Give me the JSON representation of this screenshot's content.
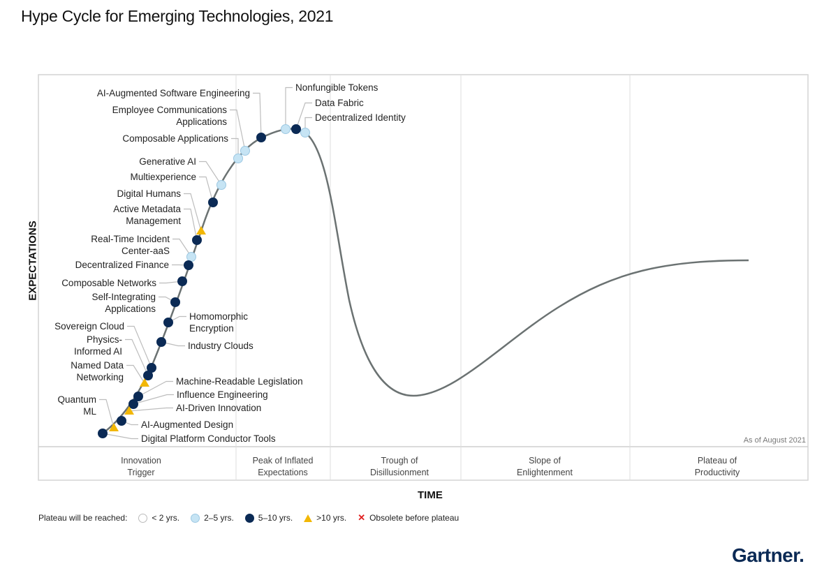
{
  "title": "Hype Cycle for Emerging Technologies, 2021",
  "y_axis_label": "EXPECTATIONS",
  "x_axis_label": "TIME",
  "as_of": "As of August 2021",
  "phases": [
    {
      "lines": [
        "Innovation",
        "Trigger"
      ]
    },
    {
      "lines": [
        "Peak of Inflated",
        "Expectations"
      ]
    },
    {
      "lines": [
        "Trough of",
        "Disillusionment"
      ]
    },
    {
      "lines": [
        "Slope of",
        "Enlightenment"
      ]
    },
    {
      "lines": [
        "Plateau of",
        "Productivity"
      ]
    }
  ],
  "legend": {
    "prefix": "Plateau will be reached:",
    "items": [
      {
        "key": "lt2",
        "label": "< 2 yrs."
      },
      {
        "key": "2to5",
        "label": "2–5 yrs."
      },
      {
        "key": "5to10",
        "label": "5–10 yrs."
      },
      {
        "key": "gt10",
        "label": ">10 yrs."
      },
      {
        "key": "obsolete",
        "label": "Obsolete before plateau"
      }
    ]
  },
  "colors": {
    "lt2": "#ffffff",
    "2to5": "#c6e4f4",
    "5to10": "#0b2a55",
    "gt10": "#f2b705",
    "obsolete": "#e02020",
    "curve": "#6b7272",
    "brand": "#0b2a55"
  },
  "brand": "Gartner.",
  "technologies": [
    {
      "lines": [
        "AI-Augmented Software Engineering"
      ],
      "plateau": "5to10"
    },
    {
      "lines": [
        "Employee Communications",
        "Applications"
      ],
      "plateau": "2to5"
    },
    {
      "lines": [
        "Composable Applications"
      ],
      "plateau": "2to5"
    },
    {
      "lines": [
        "Generative AI"
      ],
      "plateau": "2to5"
    },
    {
      "lines": [
        "Multiexperience"
      ],
      "plateau": "5to10"
    },
    {
      "lines": [
        "Digital Humans"
      ],
      "plateau": "gt10"
    },
    {
      "lines": [
        "Active Metadata",
        "Management"
      ],
      "plateau": "5to10"
    },
    {
      "lines": [
        "Real-Time Incident",
        "Center-aaS"
      ],
      "plateau": "2to5"
    },
    {
      "lines": [
        "Decentralized Finance"
      ],
      "plateau": "5to10"
    },
    {
      "lines": [
        "Composable Networks"
      ],
      "plateau": "5to10"
    },
    {
      "lines": [
        "Self-Integrating",
        "Applications"
      ],
      "plateau": "5to10"
    },
    {
      "lines": [
        "Homomorphic",
        "Encryption"
      ],
      "plateau": "5to10"
    },
    {
      "lines": [
        "Industry Clouds"
      ],
      "plateau": "5to10"
    },
    {
      "lines": [
        "Sovereign Cloud"
      ],
      "plateau": "5to10"
    },
    {
      "lines": [
        "Physics-",
        "Informed AI"
      ],
      "plateau": "5to10"
    },
    {
      "lines": [
        "Named Data",
        "Networking"
      ],
      "plateau": "gt10"
    },
    {
      "lines": [
        "Machine-Readable Legislation"
      ],
      "plateau": "5to10"
    },
    {
      "lines": [
        "Influence Engineering"
      ],
      "plateau": "5to10"
    },
    {
      "lines": [
        "AI-Driven Innovation"
      ],
      "plateau": "gt10"
    },
    {
      "lines": [
        "Quantum",
        "ML"
      ],
      "plateau": "gt10"
    },
    {
      "lines": [
        "AI-Augmented Design"
      ],
      "plateau": "5to10"
    },
    {
      "lines": [
        "Digital Platform Conductor Tools"
      ],
      "plateau": "5to10"
    },
    {
      "lines": [
        "Nonfungible Tokens"
      ],
      "plateau": "2to5"
    },
    {
      "lines": [
        "Data Fabric"
      ],
      "plateau": "5to10"
    },
    {
      "lines": [
        "Decentralized Identity"
      ],
      "plateau": "2to5"
    }
  ]
}
